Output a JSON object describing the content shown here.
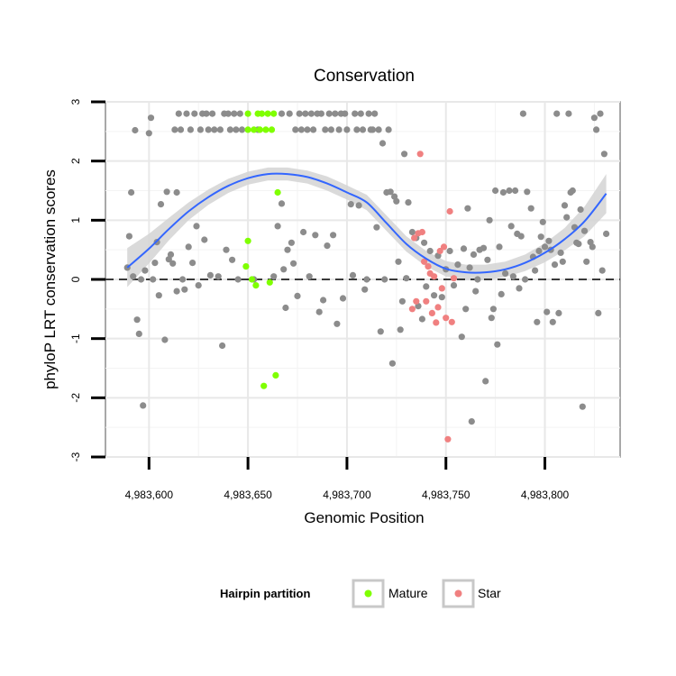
{
  "chart_data": {
    "type": "scatter",
    "title": "Conservation",
    "xlabel": "Genomic Position",
    "ylabel": "phyloP LRT conservation scores",
    "xlim": [
      4983578,
      4983838
    ],
    "ylim": [
      -3,
      3
    ],
    "x_ticks": [
      4983600,
      4983650,
      4983700,
      4983750,
      4983800
    ],
    "x_tick_labels": [
      "4,983,600",
      "4,983,650",
      "4,983,700",
      "4,983,750",
      "4,983,800"
    ],
    "y_ticks": [
      -3,
      -2,
      -1,
      0,
      1,
      2,
      3
    ],
    "y_tick_labels": [
      "-3",
      "-2",
      "-1",
      "0",
      "1",
      "2",
      "3"
    ],
    "reference_line": {
      "y": 0,
      "style": "dashed"
    },
    "grid": true,
    "legend": {
      "title": "Hairpin partition",
      "position": "bottom",
      "entries": [
        {
          "label": "Mature",
          "color": "#7fff00"
        },
        {
          "label": "Star",
          "color": "#f08080"
        }
      ]
    },
    "colors": {
      "other": "#8c8c8c",
      "mature": "#7fff00",
      "star": "#f08080",
      "smooth_line": "#3366ff",
      "smooth_band": "#d4d4d4"
    },
    "series": [
      {
        "group": "other",
        "points": [
          [
            4983589,
            0.2
          ],
          [
            4983590,
            0.73
          ],
          [
            4983591,
            1.47
          ],
          [
            4983592,
            0.05
          ],
          [
            4983593,
            2.52
          ],
          [
            4983594,
            -0.68
          ],
          [
            4983595,
            -0.92
          ],
          [
            4983596,
            0.0
          ],
          [
            4983597,
            -2.13
          ],
          [
            4983598,
            0.15
          ],
          [
            4983600,
            2.47
          ],
          [
            4983601,
            2.73
          ],
          [
            4983602,
            0.0
          ],
          [
            4983603,
            0.28
          ],
          [
            4983604,
            0.63
          ],
          [
            4983605,
            -0.27
          ],
          [
            4983606,
            1.27
          ],
          [
            4983608,
            -1.02
          ],
          [
            4983609,
            1.48
          ],
          [
            4983610,
            0.34
          ],
          [
            4983611,
            0.42
          ],
          [
            4983612,
            0.27
          ],
          [
            4983613,
            2.53
          ],
          [
            4983614,
            1.47
          ],
          [
            4983614,
            -0.2
          ],
          [
            4983615,
            2.8
          ],
          [
            4983616,
            2.53
          ],
          [
            4983617,
            0.0
          ],
          [
            4983618,
            -0.17
          ],
          [
            4983619,
            2.8
          ],
          [
            4983620,
            0.55
          ],
          [
            4983621,
            2.53
          ],
          [
            4983622,
            0.28
          ],
          [
            4983623,
            2.8
          ],
          [
            4983624,
            0.9
          ],
          [
            4983625,
            -0.1
          ],
          [
            4983626,
            2.53
          ],
          [
            4983627,
            2.8
          ],
          [
            4983628,
            0.67
          ],
          [
            4983629,
            2.8
          ],
          [
            4983630,
            2.53
          ],
          [
            4983631,
            0.07
          ],
          [
            4983632,
            2.8
          ],
          [
            4983633,
            2.53
          ],
          [
            4983635,
            0.05
          ],
          [
            4983636,
            2.53
          ],
          [
            4983637,
            -1.12
          ],
          [
            4983638,
            2.8
          ],
          [
            4983639,
            0.5
          ],
          [
            4983640,
            2.8
          ],
          [
            4983641,
            2.53
          ],
          [
            4983642,
            0.33
          ],
          [
            4983643,
            2.8
          ],
          [
            4983644,
            2.53
          ],
          [
            4983645,
            0.0
          ],
          [
            4983646,
            2.8
          ],
          [
            4983647,
            2.53
          ],
          [
            4983653,
            0.0
          ],
          [
            4983655,
            2.53
          ],
          [
            4983663,
            0.05
          ],
          [
            4983665,
            0.9
          ],
          [
            4983667,
            1.28
          ],
          [
            4983667,
            2.8
          ],
          [
            4983668,
            0.17
          ],
          [
            4983669,
            -0.48
          ],
          [
            4983670,
            0.5
          ],
          [
            4983671,
            2.8
          ],
          [
            4983672,
            0.62
          ],
          [
            4983673,
            0.27
          ],
          [
            4983674,
            2.53
          ],
          [
            4983675,
            -0.28
          ],
          [
            4983676,
            2.8
          ],
          [
            4983677,
            2.53
          ],
          [
            4983678,
            0.8
          ],
          [
            4983679,
            2.8
          ],
          [
            4983680,
            2.53
          ],
          [
            4983681,
            0.05
          ],
          [
            4983682,
            2.8
          ],
          [
            4983683,
            2.53
          ],
          [
            4983684,
            0.75
          ],
          [
            4983685,
            2.8
          ],
          [
            4983686,
            -0.55
          ],
          [
            4983687,
            2.8
          ],
          [
            4983688,
            -0.35
          ],
          [
            4983689,
            2.53
          ],
          [
            4983690,
            0.57
          ],
          [
            4983691,
            2.8
          ],
          [
            4983692,
            2.53
          ],
          [
            4983693,
            0.75
          ],
          [
            4983694,
            2.8
          ],
          [
            4983695,
            -0.75
          ],
          [
            4983696,
            2.53
          ],
          [
            4983697,
            2.8
          ],
          [
            4983698,
            -0.32
          ],
          [
            4983699,
            2.8
          ],
          [
            4983700,
            2.53
          ],
          [
            4983702,
            1.27
          ],
          [
            4983703,
            0.07
          ],
          [
            4983704,
            2.8
          ],
          [
            4983705,
            2.53
          ],
          [
            4983706,
            1.25
          ],
          [
            4983707,
            2.8
          ],
          [
            4983708,
            2.53
          ],
          [
            4983709,
            -0.17
          ],
          [
            4983710,
            0.0
          ],
          [
            4983711,
            2.8
          ],
          [
            4983712,
            2.53
          ],
          [
            4983713,
            2.53
          ],
          [
            4983714,
            2.8
          ],
          [
            4983715,
            0.88
          ],
          [
            4983716,
            2.53
          ],
          [
            4983717,
            -0.88
          ],
          [
            4983718,
            2.3
          ],
          [
            4983719,
            0.0
          ],
          [
            4983720,
            1.47
          ],
          [
            4983721,
            2.53
          ],
          [
            4983722,
            1.48
          ],
          [
            4983723,
            -1.42
          ],
          [
            4983724,
            1.4
          ],
          [
            4983725,
            1.32
          ],
          [
            4983726,
            0.3
          ],
          [
            4983727,
            -0.85
          ],
          [
            4983728,
            -0.37
          ],
          [
            4983729,
            2.12
          ],
          [
            4983730,
            0.02
          ],
          [
            4983731,
            1.3
          ],
          [
            4983733,
            0.8
          ],
          [
            4983735,
            0.7
          ],
          [
            4983736,
            -0.45
          ],
          [
            4983738,
            -0.67
          ],
          [
            4983739,
            0.62
          ],
          [
            4983740,
            -0.12
          ],
          [
            4983742,
            0.48
          ],
          [
            4983744,
            -0.27
          ],
          [
            4983746,
            0.4
          ],
          [
            4983748,
            -0.3
          ],
          [
            4983750,
            0.17
          ],
          [
            4983752,
            0.48
          ],
          [
            4983754,
            -0.1
          ],
          [
            4983756,
            0.25
          ],
          [
            4983758,
            -0.97
          ],
          [
            4983759,
            0.52
          ],
          [
            4983760,
            -0.5
          ],
          [
            4983761,
            1.2
          ],
          [
            4983762,
            0.2
          ],
          [
            4983763,
            -2.4
          ],
          [
            4983764,
            0.42
          ],
          [
            4983765,
            -0.2
          ],
          [
            4983766,
            0.0
          ],
          [
            4983767,
            0.5
          ],
          [
            4983769,
            0.53
          ],
          [
            4983770,
            -1.72
          ],
          [
            4983771,
            0.33
          ],
          [
            4983772,
            1.0
          ],
          [
            4983773,
            -0.65
          ],
          [
            4983774,
            -0.5
          ],
          [
            4983775,
            1.5
          ],
          [
            4983776,
            -1.1
          ],
          [
            4983777,
            0.55
          ],
          [
            4983778,
            -0.25
          ],
          [
            4983779,
            1.47
          ],
          [
            4983780,
            0.1
          ],
          [
            4983782,
            1.5
          ],
          [
            4983783,
            0.9
          ],
          [
            4983784,
            0.05
          ],
          [
            4983785,
            1.5
          ],
          [
            4983786,
            0.77
          ],
          [
            4983787,
            -0.15
          ],
          [
            4983788,
            0.73
          ],
          [
            4983789,
            2.8
          ],
          [
            4983790,
            0.0
          ],
          [
            4983791,
            1.48
          ],
          [
            4983793,
            1.2
          ],
          [
            4983794,
            0.38
          ],
          [
            4983795,
            0.15
          ],
          [
            4983796,
            -0.72
          ],
          [
            4983797,
            0.48
          ],
          [
            4983798,
            0.72
          ],
          [
            4983799,
            0.97
          ],
          [
            4983800,
            0.55
          ],
          [
            4983801,
            -0.55
          ],
          [
            4983802,
            0.65
          ],
          [
            4983803,
            0.5
          ],
          [
            4983804,
            -0.72
          ],
          [
            4983805,
            0.25
          ],
          [
            4983806,
            2.8
          ],
          [
            4983807,
            -0.57
          ],
          [
            4983808,
            0.45
          ],
          [
            4983809,
            0.3
          ],
          [
            4983810,
            1.25
          ],
          [
            4983811,
            1.05
          ],
          [
            4983812,
            2.8
          ],
          [
            4983813,
            1.47
          ],
          [
            4983814,
            1.5
          ],
          [
            4983815,
            0.88
          ],
          [
            4983816,
            0.62
          ],
          [
            4983817,
            0.6
          ],
          [
            4983818,
            1.18
          ],
          [
            4983819,
            -2.15
          ],
          [
            4983820,
            0.82
          ],
          [
            4983821,
            0.3
          ],
          [
            4983823,
            0.63
          ],
          [
            4983824,
            0.55
          ],
          [
            4983825,
            2.73
          ],
          [
            4983826,
            2.53
          ],
          [
            4983827,
            -0.57
          ],
          [
            4983828,
            2.8
          ],
          [
            4983829,
            0.15
          ],
          [
            4983830,
            2.12
          ],
          [
            4983831,
            0.77
          ]
        ]
      },
      {
        "group": "mature",
        "name": "Mature",
        "points": [
          [
            4983649,
            0.22
          ],
          [
            4983650,
            0.65
          ],
          [
            4983650,
            2.8
          ],
          [
            4983650,
            2.53
          ],
          [
            4983652,
            0.0
          ],
          [
            4983653,
            2.53
          ],
          [
            4983654,
            -0.1
          ],
          [
            4983655,
            2.8
          ],
          [
            4983656,
            2.53
          ],
          [
            4983657,
            2.8
          ],
          [
            4983658,
            -1.8
          ],
          [
            4983659,
            2.53
          ],
          [
            4983660,
            2.8
          ],
          [
            4983661,
            -0.05
          ],
          [
            4983662,
            2.53
          ],
          [
            4983663,
            2.8
          ],
          [
            4983664,
            -1.62
          ],
          [
            4983665,
            1.47
          ]
        ]
      },
      {
        "group": "star",
        "name": "Star",
        "points": [
          [
            4983733,
            -0.5
          ],
          [
            4983734,
            0.7
          ],
          [
            4983735,
            -0.37
          ],
          [
            4983736,
            0.78
          ],
          [
            4983737,
            2.12
          ],
          [
            4983738,
            0.8
          ],
          [
            4983739,
            0.3
          ],
          [
            4983740,
            -0.37
          ],
          [
            4983741,
            0.22
          ],
          [
            4983742,
            0.1
          ],
          [
            4983743,
            -0.57
          ],
          [
            4983744,
            0.05
          ],
          [
            4983745,
            -0.73
          ],
          [
            4983746,
            -0.47
          ],
          [
            4983747,
            0.48
          ],
          [
            4983748,
            -0.15
          ],
          [
            4983749,
            0.55
          ],
          [
            4983750,
            -0.65
          ],
          [
            4983751,
            -2.7
          ],
          [
            4983752,
            1.15
          ],
          [
            4983753,
            -0.72
          ],
          [
            4983754,
            0.02
          ]
        ]
      }
    ],
    "smooth": {
      "x": [
        4983589,
        4983600,
        4983610,
        4983620,
        4983630,
        4983640,
        4983650,
        4983660,
        4983670,
        4983680,
        4983690,
        4983700,
        4983710,
        4983720,
        4983730,
        4983740,
        4983750,
        4983760,
        4983770,
        4983780,
        4983790,
        4983800,
        4983810,
        4983820,
        4983831
      ],
      "y": [
        0.2,
        0.52,
        0.85,
        1.15,
        1.39,
        1.58,
        1.71,
        1.78,
        1.78,
        1.73,
        1.62,
        1.47,
        1.3,
        0.95,
        0.6,
        0.35,
        0.18,
        0.12,
        0.12,
        0.17,
        0.28,
        0.45,
        0.68,
        0.98,
        1.45
      ],
      "band_width": [
        0.33,
        0.25,
        0.19,
        0.15,
        0.13,
        0.12,
        0.11,
        0.11,
        0.11,
        0.11,
        0.12,
        0.12,
        0.13,
        0.13,
        0.13,
        0.13,
        0.13,
        0.13,
        0.13,
        0.13,
        0.14,
        0.16,
        0.19,
        0.25,
        0.33
      ]
    }
  }
}
